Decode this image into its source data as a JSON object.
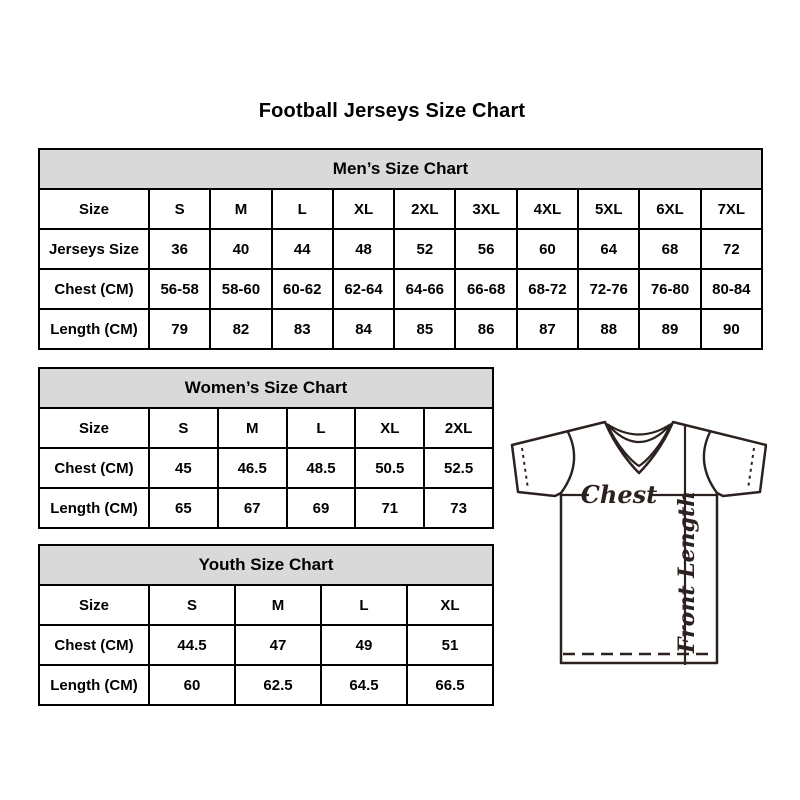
{
  "page": {
    "title": "Football Jerseys Size Chart"
  },
  "tables": [
    {
      "id": "mens",
      "title": "Men’s Size Chart",
      "rows": [
        [
          "Size",
          "S",
          "M",
          "L",
          "XL",
          "2XL",
          "3XL",
          "4XL",
          "5XL",
          "6XL",
          "7XL"
        ],
        [
          "Jerseys Size",
          "36",
          "40",
          "44",
          "48",
          "52",
          "56",
          "60",
          "64",
          "68",
          "72"
        ],
        [
          "Chest (CM)",
          "56-58",
          "58-60",
          "60-62",
          "62-64",
          "64-66",
          "66-68",
          "68-72",
          "72-76",
          "76-80",
          "80-84"
        ],
        [
          "Length (CM)",
          "79",
          "82",
          "83",
          "84",
          "85",
          "86",
          "87",
          "88",
          "89",
          "90"
        ]
      ]
    },
    {
      "id": "womens",
      "title": "Women’s Size Chart",
      "rows": [
        [
          "Size",
          "S",
          "M",
          "L",
          "XL",
          "2XL"
        ],
        [
          "Chest (CM)",
          "45",
          "46.5",
          "48.5",
          "50.5",
          "52.5"
        ],
        [
          "Length (CM)",
          "65",
          "67",
          "69",
          "71",
          "73"
        ]
      ]
    },
    {
      "id": "youth",
      "title": "Youth Size Chart",
      "rows": [
        [
          "Size",
          "S",
          "M",
          "L",
          "XL"
        ],
        [
          "Chest (CM)",
          "44.5",
          "47",
          "49",
          "51"
        ],
        [
          "Length (CM)",
          "60",
          "62.5",
          "64.5",
          "66.5"
        ]
      ]
    }
  ],
  "diagram": {
    "chest_label": "Chest",
    "front_length_label": "Front Length"
  },
  "colors": {
    "table_header_bg": "#d9d9d9",
    "table_border": "#000000",
    "text": "#000000",
    "diagram_stroke": "#2b221f"
  }
}
